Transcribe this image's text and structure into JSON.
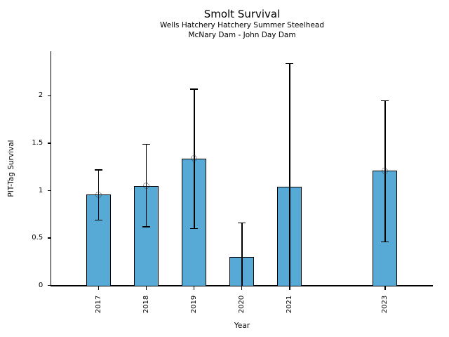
{
  "chart_data": {
    "type": "bar",
    "title": "Smolt Survival",
    "subtitle": [
      "Wells Hatchery Hatchery Summer Steelhead",
      "McNary Dam - John Day Dam"
    ],
    "xlabel": "Year",
    "ylabel": "PIT-Tag Survival",
    "categories": [
      "2017",
      "2018",
      "2019",
      "2020",
      "2021",
      "2023"
    ],
    "values": [
      0.96,
      1.05,
      1.34,
      0.3,
      1.04,
      1.21
    ],
    "x_axis": {
      "min": 2016,
      "max": 2024,
      "tick_years": [
        2017,
        2018,
        2019,
        2020,
        2021,
        2023
      ]
    },
    "ylim": [
      0,
      2.47
    ],
    "yticks_values": [
      0,
      0.5,
      1,
      1.5,
      2
    ],
    "yticks_labels": [
      "0",
      "0.5",
      "1",
      "1.5",
      "2"
    ],
    "grid": false,
    "legend": "none",
    "series": [
      {
        "name": "PIT-Tag Survival",
        "points": [
          {
            "year": "2017",
            "value": 0.96,
            "ci_low": 0.69,
            "ci_high": 1.22,
            "marker": true,
            "ci_low_cap": true
          },
          {
            "year": "2018",
            "value": 1.05,
            "ci_low": 0.62,
            "ci_high": 1.49,
            "marker": true,
            "ci_low_cap": true
          },
          {
            "year": "2019",
            "value": 1.34,
            "ci_low": 0.6,
            "ci_high": 2.07,
            "marker": true,
            "ci_low_cap": true
          },
          {
            "year": "2020",
            "value": 0.3,
            "ci_low": 0.0,
            "ci_high": 0.66,
            "marker": false,
            "ci_low_cap": false
          },
          {
            "year": "2021",
            "value": 1.04,
            "ci_low": 0.0,
            "ci_high": 2.34,
            "marker": false,
            "ci_low_cap": false
          },
          {
            "year": "2023",
            "value": 1.21,
            "ci_low": 0.46,
            "ci_high": 1.95,
            "marker": true,
            "ci_low_cap": true
          }
        ]
      }
    ],
    "colors": {
      "bar_fill": "#57a9d6",
      "bar_edge": "#000000",
      "error_bar": "#000000",
      "marker_edge": "#333333",
      "text": "#000000"
    }
  }
}
